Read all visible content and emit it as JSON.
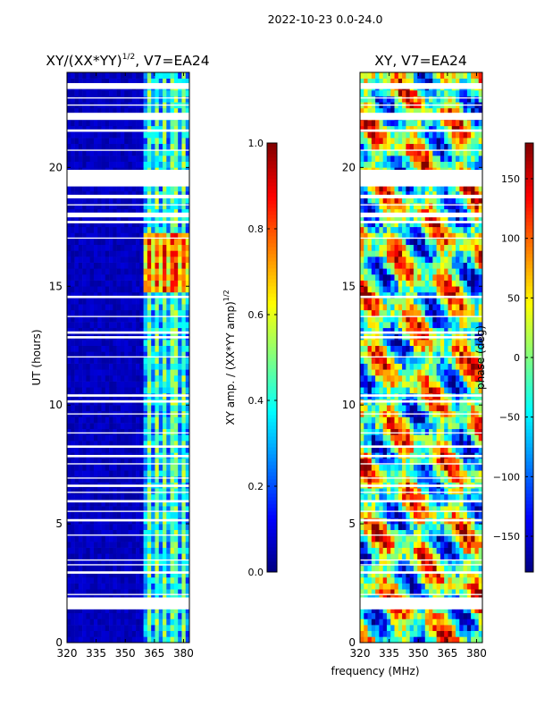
{
  "suptitle": "2022-10-23 0.0-24.0",
  "colors": {
    "jet": [
      "#000080",
      "#0000ff",
      "#0080ff",
      "#00ffff",
      "#80ff80",
      "#ffff00",
      "#ff8000",
      "#ff0000",
      "#800000"
    ],
    "axis": "#000000",
    "gap": "#ffffff"
  },
  "chart_data": [
    {
      "type": "heatmap",
      "title": "XY/(XX*YY)^(1/2), V7=EA24",
      "title_main": "XY/(XX*YY)",
      "title_exp": "1/2",
      "title_tail": ", V7=EA24",
      "xlabel": "frequency (MHz)",
      "ylabel": "UT (hours)",
      "xlim": [
        320,
        383
      ],
      "ylim": [
        0,
        24
      ],
      "xticks": [
        320,
        335,
        350,
        365,
        380
      ],
      "yticks": [
        0,
        5,
        10,
        15,
        20
      ],
      "colorbar": {
        "label": "XY amp. / (XX*YY amp)^1/2",
        "label_main": "XY amp. / (XX*YY amp)",
        "label_exp": "1/2",
        "range": [
          0.0,
          1.0
        ],
        "ticks": [
          "0.0",
          "0.2",
          "0.4",
          "0.6",
          "0.8",
          "1.0"
        ]
      },
      "description": "Normalized amplitude low (~0.05) below 360 MHz; channels 360-383 MHz elevated (~0.3-0.6) with peaks ~0.8-0.9 near 15-17 UT"
    },
    {
      "type": "heatmap",
      "title": "XY, V7=EA24",
      "xlabel": "frequency (MHz)",
      "ylabel": "",
      "xlim": [
        320,
        383
      ],
      "ylim": [
        0,
        24
      ],
      "xticks": [
        320,
        335,
        350,
        365,
        380
      ],
      "yticks": [
        0,
        5,
        10,
        15,
        20
      ],
      "colorbar": {
        "label": "phase (deg)",
        "range": [
          -180,
          180
        ],
        "ticks": [
          "−150",
          "−100",
          "−50",
          "0",
          "50",
          "100",
          "150"
        ]
      },
      "description": "Phase noise-like pattern spanning full -180 to 180 deg range"
    }
  ],
  "flagged_ut_gaps": [
    [
      1.4,
      1.9
    ],
    [
      2.0,
      2.05
    ],
    [
      2.9,
      3.0
    ],
    [
      3.25,
      3.3
    ],
    [
      3.45,
      3.5
    ],
    [
      4.5,
      4.55
    ],
    [
      5.1,
      5.2
    ],
    [
      5.5,
      5.55
    ],
    [
      5.9,
      6.0
    ],
    [
      6.3,
      6.35
    ],
    [
      6.55,
      6.65
    ],
    [
      6.9,
      6.95
    ],
    [
      7.5,
      7.55
    ],
    [
      7.8,
      7.9
    ],
    [
      8.2,
      8.3
    ],
    [
      8.8,
      8.85
    ],
    [
      9.6,
      9.65
    ],
    [
      10.1,
      10.2
    ],
    [
      10.35,
      10.45
    ],
    [
      12.0,
      12.05
    ],
    [
      12.8,
      12.9
    ],
    [
      13.0,
      13.1
    ],
    [
      13.7,
      13.75
    ],
    [
      14.5,
      14.6
    ],
    [
      17.0,
      17.05
    ],
    [
      17.65,
      17.75
    ],
    [
      17.9,
      18.1
    ],
    [
      18.4,
      18.45
    ],
    [
      18.7,
      18.85
    ],
    [
      19.2,
      19.9
    ],
    [
      20.7,
      20.75
    ],
    [
      21.5,
      21.6
    ],
    [
      22.0,
      22.3
    ],
    [
      22.6,
      22.65
    ],
    [
      22.9,
      22.95
    ],
    [
      23.3,
      23.55
    ]
  ]
}
